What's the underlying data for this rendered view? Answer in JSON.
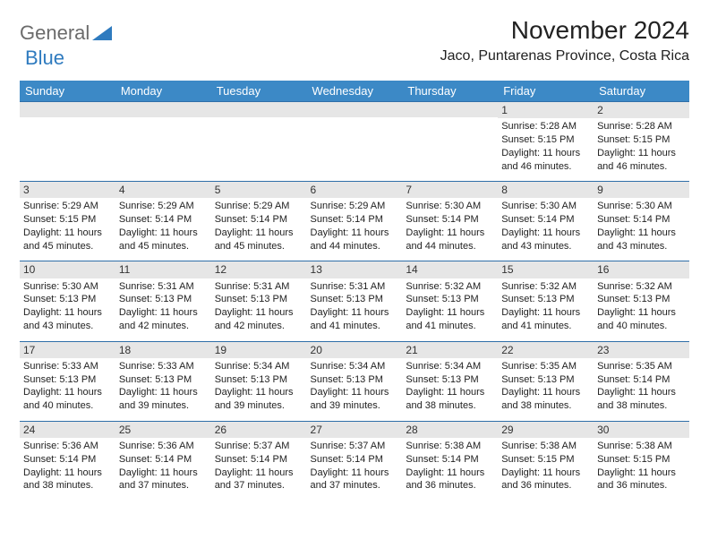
{
  "logo": {
    "word1": "General",
    "word2": "Blue"
  },
  "title": "November 2024",
  "location": "Jaco, Puntarenas Province, Costa Rica",
  "day_headers": [
    "Sunday",
    "Monday",
    "Tuesday",
    "Wednesday",
    "Thursday",
    "Friday",
    "Saturday"
  ],
  "colors": {
    "header_bg": "#3c89c6",
    "header_fg": "#ffffff",
    "daynum_bg": "#e6e6e6",
    "row_border": "#2f6fa8",
    "logo_gray": "#6b6b6b",
    "logo_blue": "#2f7bbf"
  },
  "leading_blanks": 5,
  "days": [
    {
      "n": "1",
      "sunrise": "5:28 AM",
      "sunset": "5:15 PM",
      "daylight": "11 hours and 46 minutes."
    },
    {
      "n": "2",
      "sunrise": "5:28 AM",
      "sunset": "5:15 PM",
      "daylight": "11 hours and 46 minutes."
    },
    {
      "n": "3",
      "sunrise": "5:29 AM",
      "sunset": "5:15 PM",
      "daylight": "11 hours and 45 minutes."
    },
    {
      "n": "4",
      "sunrise": "5:29 AM",
      "sunset": "5:14 PM",
      "daylight": "11 hours and 45 minutes."
    },
    {
      "n": "5",
      "sunrise": "5:29 AM",
      "sunset": "5:14 PM",
      "daylight": "11 hours and 45 minutes."
    },
    {
      "n": "6",
      "sunrise": "5:29 AM",
      "sunset": "5:14 PM",
      "daylight": "11 hours and 44 minutes."
    },
    {
      "n": "7",
      "sunrise": "5:30 AM",
      "sunset": "5:14 PM",
      "daylight": "11 hours and 44 minutes."
    },
    {
      "n": "8",
      "sunrise": "5:30 AM",
      "sunset": "5:14 PM",
      "daylight": "11 hours and 43 minutes."
    },
    {
      "n": "9",
      "sunrise": "5:30 AM",
      "sunset": "5:14 PM",
      "daylight": "11 hours and 43 minutes."
    },
    {
      "n": "10",
      "sunrise": "5:30 AM",
      "sunset": "5:13 PM",
      "daylight": "11 hours and 43 minutes."
    },
    {
      "n": "11",
      "sunrise": "5:31 AM",
      "sunset": "5:13 PM",
      "daylight": "11 hours and 42 minutes."
    },
    {
      "n": "12",
      "sunrise": "5:31 AM",
      "sunset": "5:13 PM",
      "daylight": "11 hours and 42 minutes."
    },
    {
      "n": "13",
      "sunrise": "5:31 AM",
      "sunset": "5:13 PM",
      "daylight": "11 hours and 41 minutes."
    },
    {
      "n": "14",
      "sunrise": "5:32 AM",
      "sunset": "5:13 PM",
      "daylight": "11 hours and 41 minutes."
    },
    {
      "n": "15",
      "sunrise": "5:32 AM",
      "sunset": "5:13 PM",
      "daylight": "11 hours and 41 minutes."
    },
    {
      "n": "16",
      "sunrise": "5:32 AM",
      "sunset": "5:13 PM",
      "daylight": "11 hours and 40 minutes."
    },
    {
      "n": "17",
      "sunrise": "5:33 AM",
      "sunset": "5:13 PM",
      "daylight": "11 hours and 40 minutes."
    },
    {
      "n": "18",
      "sunrise": "5:33 AM",
      "sunset": "5:13 PM",
      "daylight": "11 hours and 39 minutes."
    },
    {
      "n": "19",
      "sunrise": "5:34 AM",
      "sunset": "5:13 PM",
      "daylight": "11 hours and 39 minutes."
    },
    {
      "n": "20",
      "sunrise": "5:34 AM",
      "sunset": "5:13 PM",
      "daylight": "11 hours and 39 minutes."
    },
    {
      "n": "21",
      "sunrise": "5:34 AM",
      "sunset": "5:13 PM",
      "daylight": "11 hours and 38 minutes."
    },
    {
      "n": "22",
      "sunrise": "5:35 AM",
      "sunset": "5:13 PM",
      "daylight": "11 hours and 38 minutes."
    },
    {
      "n": "23",
      "sunrise": "5:35 AM",
      "sunset": "5:14 PM",
      "daylight": "11 hours and 38 minutes."
    },
    {
      "n": "24",
      "sunrise": "5:36 AM",
      "sunset": "5:14 PM",
      "daylight": "11 hours and 38 minutes."
    },
    {
      "n": "25",
      "sunrise": "5:36 AM",
      "sunset": "5:14 PM",
      "daylight": "11 hours and 37 minutes."
    },
    {
      "n": "26",
      "sunrise": "5:37 AM",
      "sunset": "5:14 PM",
      "daylight": "11 hours and 37 minutes."
    },
    {
      "n": "27",
      "sunrise": "5:37 AM",
      "sunset": "5:14 PM",
      "daylight": "11 hours and 37 minutes."
    },
    {
      "n": "28",
      "sunrise": "5:38 AM",
      "sunset": "5:14 PM",
      "daylight": "11 hours and 36 minutes."
    },
    {
      "n": "29",
      "sunrise": "5:38 AM",
      "sunset": "5:15 PM",
      "daylight": "11 hours and 36 minutes."
    },
    {
      "n": "30",
      "sunrise": "5:38 AM",
      "sunset": "5:15 PM",
      "daylight": "11 hours and 36 minutes."
    }
  ],
  "labels": {
    "sunrise": "Sunrise: ",
    "sunset": "Sunset: ",
    "daylight": "Daylight: "
  }
}
